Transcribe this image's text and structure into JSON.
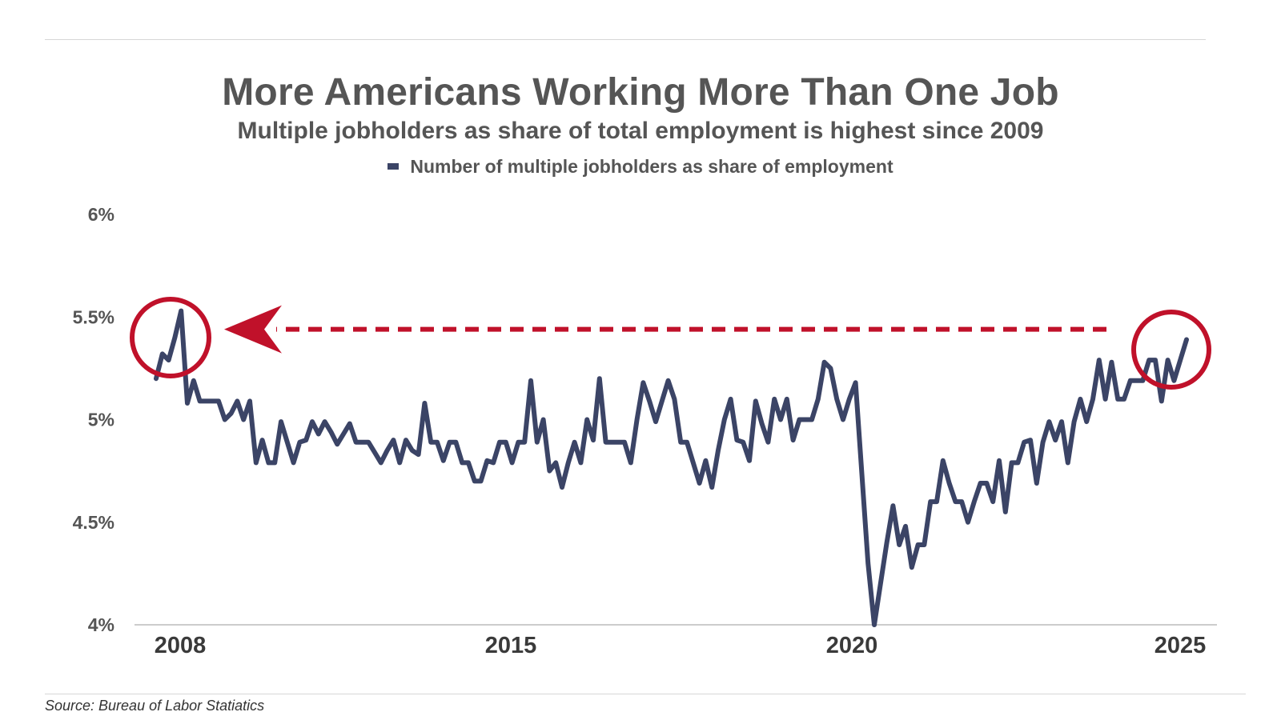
{
  "header": {
    "title": "More Americans Working More Than One Job",
    "subtitle": "Multiple jobholders as share of total employment is highest since 2009"
  },
  "footer": {
    "source": "Source: Bureau of Labor Statiatics"
  },
  "colors": {
    "series": "#3b4466",
    "annotation": "#c0112a",
    "axis": "#cccccc",
    "text": "#555555"
  },
  "chart_data": {
    "type": "line",
    "legend": {
      "position": "top-center",
      "entries": [
        "Number of multiple jobholders as share of employment"
      ]
    },
    "grid": false,
    "ylim": [
      4.0,
      6.0
    ],
    "y_ticks": [
      {
        "value": 4.0,
        "label": "4%"
      },
      {
        "value": 4.5,
        "label": "4.5%"
      },
      {
        "value": 5.0,
        "label": "5%"
      },
      {
        "value": 5.5,
        "label": "5.5%"
      },
      {
        "value": 6.0,
        "label": "6%"
      }
    ],
    "x_ticks": [
      "2008",
      "2015",
      "2020",
      "2025"
    ],
    "series": [
      {
        "name": "Number of multiple jobholders as share of employment",
        "values": [
          5.2,
          5.32,
          5.29,
          5.4,
          5.53,
          5.08,
          5.19,
          5.09,
          5.09,
          5.09,
          5.09,
          5.0,
          5.03,
          5.09,
          5.0,
          5.09,
          4.79,
          4.9,
          4.79,
          4.79,
          4.99,
          4.89,
          4.79,
          4.89,
          4.9,
          4.99,
          4.93,
          4.99,
          4.94,
          4.88,
          4.93,
          4.98,
          4.89,
          4.89,
          4.89,
          4.84,
          4.79,
          4.85,
          4.9,
          4.79,
          4.9,
          4.85,
          4.83,
          5.08,
          4.89,
          4.89,
          4.8,
          4.89,
          4.89,
          4.79,
          4.79,
          4.7,
          4.7,
          4.8,
          4.79,
          4.89,
          4.89,
          4.79,
          4.89,
          4.89,
          5.19,
          4.89,
          5.0,
          4.75,
          4.79,
          4.67,
          4.79,
          4.89,
          4.79,
          5.0,
          4.9,
          5.2,
          4.89,
          4.89,
          4.89,
          4.89,
          4.79,
          5.0,
          5.18,
          5.09,
          4.99,
          5.09,
          5.19,
          5.1,
          4.89,
          4.89,
          4.79,
          4.69,
          4.8,
          4.67,
          4.85,
          5.0,
          5.1,
          4.9,
          4.89,
          4.8,
          5.09,
          4.98,
          4.89,
          5.1,
          5.0,
          5.1,
          4.9,
          5.0,
          5.0,
          5.0,
          5.1,
          5.28,
          5.25,
          5.1,
          5.0,
          5.1,
          5.18,
          4.74,
          4.3,
          4.0,
          4.2,
          4.4,
          4.58,
          4.39,
          4.48,
          4.28,
          4.39,
          4.39,
          4.6,
          4.6,
          4.8,
          4.69,
          4.6,
          4.6,
          4.5,
          4.6,
          4.69,
          4.69,
          4.6,
          4.8,
          4.55,
          4.79,
          4.79,
          4.89,
          4.9,
          4.69,
          4.89,
          4.99,
          4.9,
          4.99,
          4.79,
          4.99,
          5.1,
          4.99,
          5.1,
          5.29,
          5.1,
          5.28,
          5.1,
          5.1,
          5.19,
          5.19,
          5.19,
          5.29,
          5.29,
          5.09,
          5.29,
          5.19,
          5.29,
          5.39
        ]
      }
    ],
    "annotations": [
      {
        "type": "circle",
        "label": "start-peak"
      },
      {
        "type": "circle",
        "label": "end-peak"
      },
      {
        "type": "dashed-arrow",
        "direction": "left",
        "value": 5.44
      }
    ]
  }
}
